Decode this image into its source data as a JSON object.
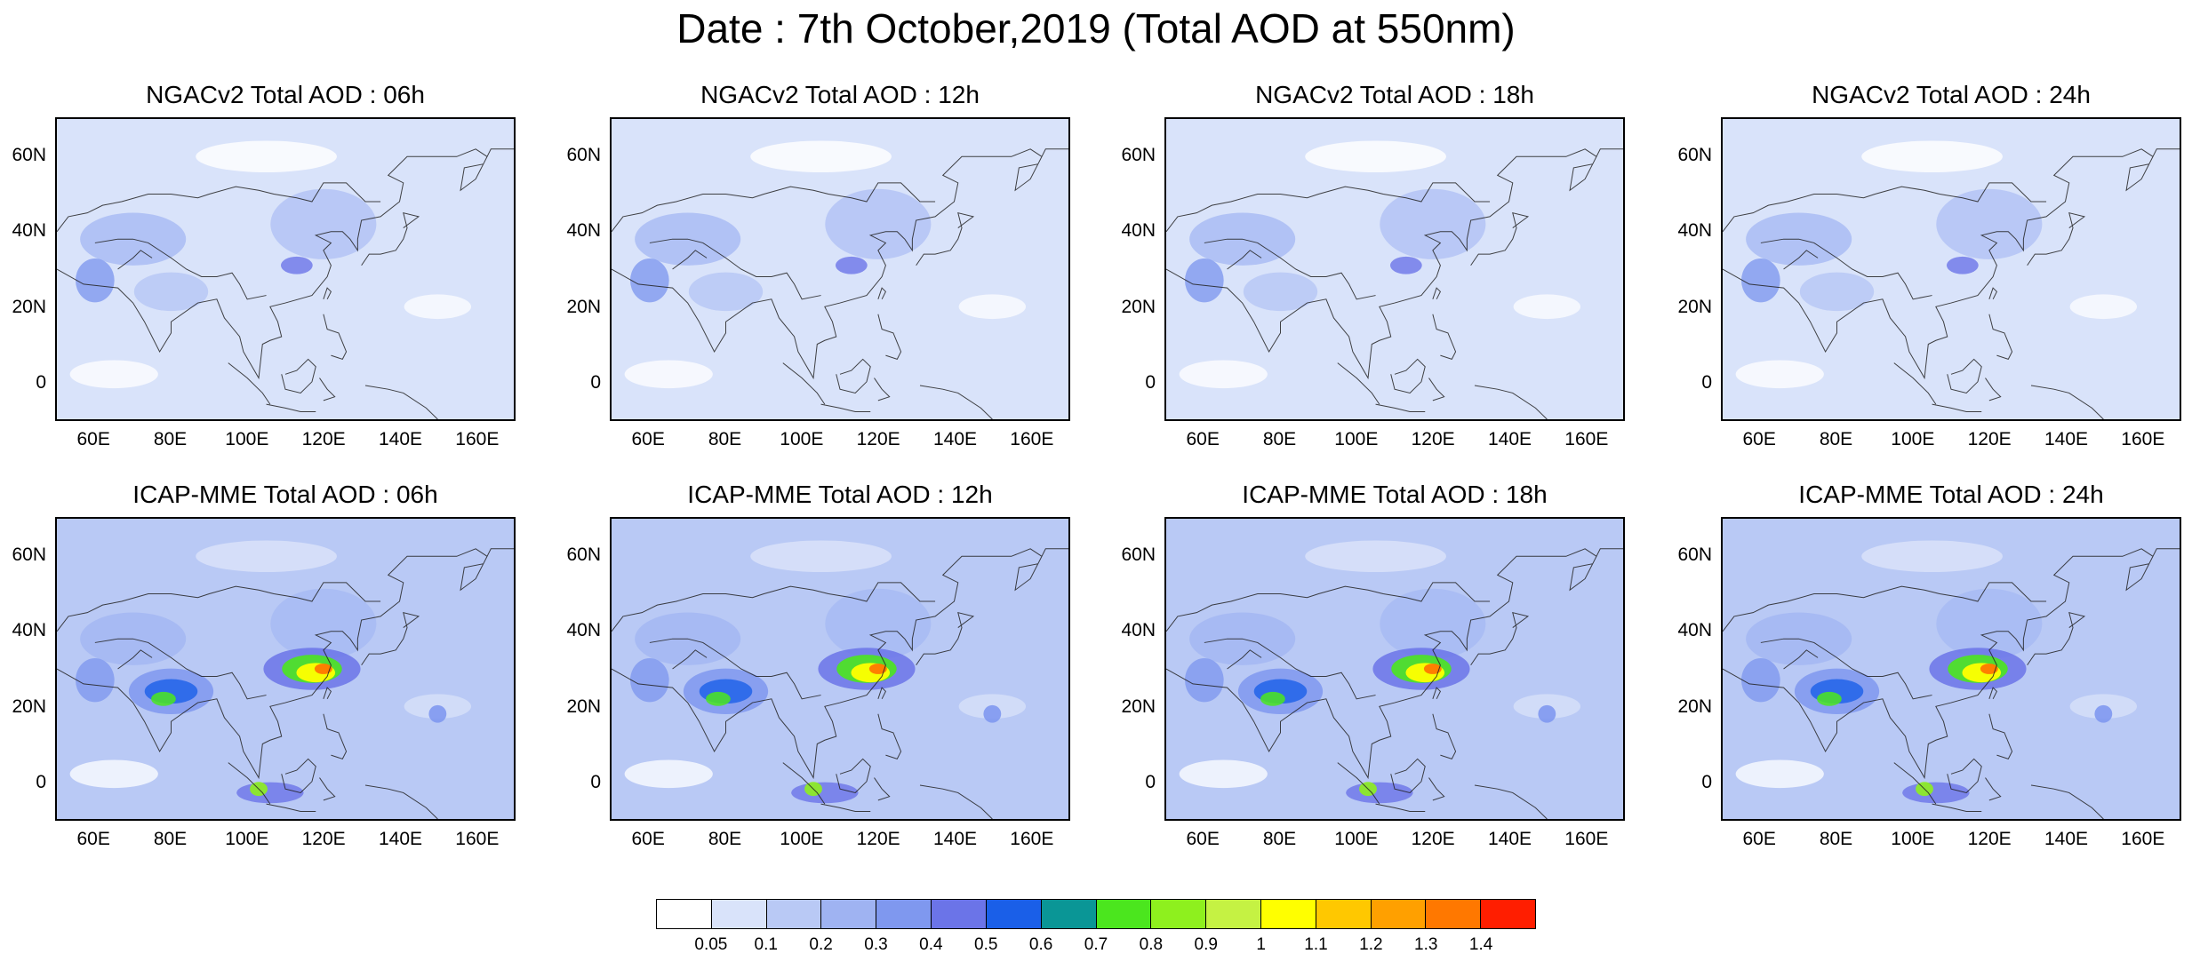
{
  "figure_title": "Date : 7th October,2019 (Total AOD at 550nm)",
  "map_extent": {
    "lon": [
      50,
      170
    ],
    "lat": [
      -10,
      70
    ]
  },
  "lat_ticks": [
    {
      "value": 60,
      "label": "60N"
    },
    {
      "value": 40,
      "label": "40N"
    },
    {
      "value": 20,
      "label": "20N"
    },
    {
      "value": 0,
      "label": "0"
    }
  ],
  "lon_ticks": [
    {
      "value": 60,
      "label": "60E"
    },
    {
      "value": 80,
      "label": "80E"
    },
    {
      "value": 100,
      "label": "100E"
    },
    {
      "value": 120,
      "label": "120E"
    },
    {
      "value": 140,
      "label": "140E"
    },
    {
      "value": 160,
      "label": "160E"
    }
  ],
  "panels": [
    {
      "title": "NGACv2 Total AOD : 06h",
      "model": "NGACv2",
      "hour": "06h"
    },
    {
      "title": "NGACv2 Total AOD : 12h",
      "model": "NGACv2",
      "hour": "12h"
    },
    {
      "title": "NGACv2 Total AOD : 18h",
      "model": "NGACv2",
      "hour": "18h"
    },
    {
      "title": "NGACv2 Total AOD : 24h",
      "model": "NGACv2",
      "hour": "24h"
    },
    {
      "title": "ICAP-MME Total AOD : 06h",
      "model": "ICAP-MME",
      "hour": "06h"
    },
    {
      "title": "ICAP-MME Total AOD : 12h",
      "model": "ICAP-MME",
      "hour": "12h"
    },
    {
      "title": "ICAP-MME Total AOD : 18h",
      "model": "ICAP-MME",
      "hour": "18h"
    },
    {
      "title": "ICAP-MME Total AOD : 24h",
      "model": "ICAP-MME",
      "hour": "24h"
    }
  ],
  "colorbar": {
    "levels": [
      "0.05",
      "0.1",
      "0.2",
      "0.3",
      "0.4",
      "0.5",
      "0.6",
      "0.7",
      "0.8",
      "0.9",
      "1",
      "1.1",
      "1.2",
      "1.3",
      "1.4"
    ],
    "colors": [
      "#ffffff",
      "#d9e3fa",
      "#b9c9f5",
      "#9fb3f2",
      "#7f98ef",
      "#6b74e8",
      "#1a5fe8",
      "#0a9696",
      "#4be61e",
      "#8ef01e",
      "#c5f243",
      "#ffff00",
      "#ffc800",
      "#ffa000",
      "#ff7800",
      "#ff1e00"
    ]
  }
}
